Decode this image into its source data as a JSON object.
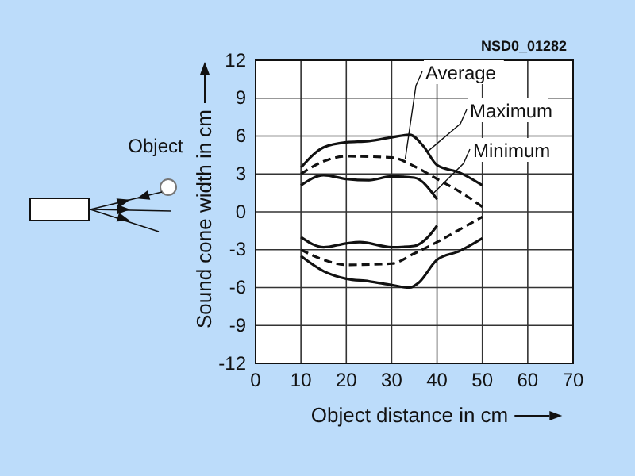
{
  "chart_data": {
    "type": "line",
    "xlabel": "Object distance in cm",
    "ylabel": "Sound cone width in cm",
    "xlim": [
      0,
      70
    ],
    "xticks": [
      0,
      10,
      20,
      30,
      40,
      50,
      60,
      70
    ],
    "ylim": [
      -12,
      12
    ],
    "yticks": [
      -12,
      -9,
      -6,
      -3,
      0,
      3,
      6,
      9,
      12
    ],
    "grid": true,
    "marker": "none",
    "series": [
      {
        "color": "#111111",
        "line_style": "solid",
        "x": [
          10,
          15,
          20,
          25,
          30,
          34,
          37,
          40,
          45,
          50
        ],
        "values": [
          3.5,
          5.1,
          5.5,
          5.6,
          5.9,
          6.1,
          5.2,
          3.7,
          3.1,
          2.1
        ]
      },
      {
        "color": "#111111",
        "line_style": "dashed",
        "x": [
          10,
          15,
          20,
          30,
          35,
          40,
          45,
          50
        ],
        "values": [
          3.0,
          4.0,
          4.4,
          4.3,
          3.6,
          2.6,
          1.6,
          0.4
        ]
      },
      {
        "color": "#111111",
        "line_style": "solid",
        "x": [
          10,
          15,
          20,
          25,
          30,
          35,
          40
        ],
        "values": [
          2.1,
          2.9,
          2.6,
          2.5,
          2.8,
          2.7,
          1.0
        ]
      },
      {
        "color": "#111111",
        "line_style": "solid",
        "x": [
          10,
          15,
          20,
          23,
          30,
          35,
          38,
          40
        ],
        "values": [
          -2.0,
          -2.8,
          -2.5,
          -2.4,
          -2.8,
          -2.7,
          -2.0,
          -1.1
        ]
      },
      {
        "color": "#111111",
        "line_style": "dashed",
        "x": [
          10,
          15,
          20,
          30,
          35,
          40,
          45,
          50
        ],
        "values": [
          -3.0,
          -3.8,
          -4.2,
          -4.1,
          -3.3,
          -2.4,
          -1.4,
          -0.4
        ]
      },
      {
        "color": "#111111",
        "line_style": "solid",
        "x": [
          10,
          15,
          20,
          25,
          30,
          34,
          36,
          40,
          45,
          50
        ],
        "values": [
          -3.5,
          -4.7,
          -5.3,
          -5.5,
          -5.8,
          -6.0,
          -5.6,
          -3.8,
          -3.1,
          -2.1
        ]
      }
    ],
    "annotations": [
      {
        "text": "Average",
        "x": 33,
        "y": 4.2
      },
      {
        "text": "Maximum",
        "x": 38,
        "y": 4.8
      },
      {
        "text": "Minimum",
        "x": 39,
        "y": 1.4
      },
      "NSD0_01282",
      "Object"
    ]
  }
}
